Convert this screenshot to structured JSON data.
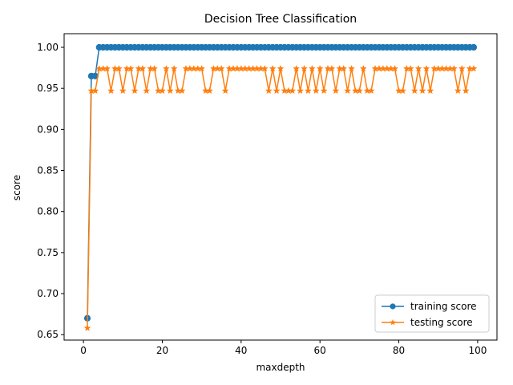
{
  "chart_data": {
    "type": "line",
    "title": "Decision Tree Classification",
    "xlabel": "maxdepth",
    "ylabel": "score",
    "xlim": [
      -4.9,
      104.9
    ],
    "ylim": [
      0.6434,
      1.0166
    ],
    "xticks": [
      0,
      20,
      40,
      60,
      80,
      100
    ],
    "yticks": [
      0.65,
      0.7,
      0.75,
      0.8,
      0.85,
      0.9,
      0.95,
      1.0
    ],
    "xtick_labels": [
      "0",
      "20",
      "40",
      "60",
      "80",
      "100"
    ],
    "ytick_labels": [
      "0.65",
      "0.70",
      "0.75",
      "0.80",
      "0.85",
      "0.90",
      "0.95",
      "1.00"
    ],
    "grid": false,
    "legend_position": "lower-right",
    "x": [
      1,
      2,
      3,
      4,
      5,
      6,
      7,
      8,
      9,
      10,
      11,
      12,
      13,
      14,
      15,
      16,
      17,
      18,
      19,
      20,
      21,
      22,
      23,
      24,
      25,
      26,
      27,
      28,
      29,
      30,
      31,
      32,
      33,
      34,
      35,
      36,
      37,
      38,
      39,
      40,
      41,
      42,
      43,
      44,
      45,
      46,
      47,
      48,
      49,
      50,
      51,
      52,
      53,
      54,
      55,
      56,
      57,
      58,
      59,
      60,
      61,
      62,
      63,
      64,
      65,
      66,
      67,
      68,
      69,
      70,
      71,
      72,
      73,
      74,
      75,
      76,
      77,
      78,
      79,
      80,
      81,
      82,
      83,
      84,
      85,
      86,
      87,
      88,
      89,
      90,
      91,
      92,
      93,
      94,
      95,
      96,
      97,
      98,
      99
    ],
    "series": [
      {
        "name": "training score",
        "color": "#1f77b4",
        "marker": "circle",
        "values": [
          0.67,
          0.965,
          0.965,
          1,
          1,
          1,
          1,
          1,
          1,
          1,
          1,
          1,
          1,
          1,
          1,
          1,
          1,
          1,
          1,
          1,
          1,
          1,
          1,
          1,
          1,
          1,
          1,
          1,
          1,
          1,
          1,
          1,
          1,
          1,
          1,
          1,
          1,
          1,
          1,
          1,
          1,
          1,
          1,
          1,
          1,
          1,
          1,
          1,
          1,
          1,
          1,
          1,
          1,
          1,
          1,
          1,
          1,
          1,
          1,
          1,
          1,
          1,
          1,
          1,
          1,
          1,
          1,
          1,
          1,
          1,
          1,
          1,
          1,
          1,
          1,
          1,
          1,
          1,
          1,
          1,
          1,
          1,
          1,
          1,
          1,
          1,
          1,
          1,
          1,
          1,
          1,
          1,
          1,
          1,
          1,
          1,
          1,
          1,
          1
        ]
      },
      {
        "name": "testing score",
        "color": "#ff7f0e",
        "marker": "star",
        "values": [
          0.658,
          0.947,
          0.947,
          0.974,
          0.974,
          0.974,
          0.947,
          0.974,
          0.974,
          0.947,
          0.974,
          0.974,
          0.947,
          0.974,
          0.974,
          0.947,
          0.974,
          0.974,
          0.947,
          0.947,
          0.974,
          0.947,
          0.974,
          0.947,
          0.947,
          0.974,
          0.974,
          0.974,
          0.974,
          0.974,
          0.947,
          0.947,
          0.974,
          0.974,
          0.974,
          0.947,
          0.974,
          0.974,
          0.974,
          0.974,
          0.974,
          0.974,
          0.974,
          0.974,
          0.974,
          0.974,
          0.947,
          0.974,
          0.947,
          0.974,
          0.947,
          0.947,
          0.947,
          0.974,
          0.947,
          0.974,
          0.947,
          0.974,
          0.947,
          0.974,
          0.947,
          0.974,
          0.974,
          0.947,
          0.974,
          0.974,
          0.947,
          0.974,
          0.947,
          0.947,
          0.974,
          0.947,
          0.947,
          0.974,
          0.974,
          0.974,
          0.974,
          0.974,
          0.974,
          0.947,
          0.947,
          0.974,
          0.974,
          0.947,
          0.974,
          0.947,
          0.974,
          0.947,
          0.974,
          0.974,
          0.974,
          0.974,
          0.974,
          0.974,
          0.947,
          0.974,
          0.947,
          0.974,
          0.974
        ]
      }
    ]
  }
}
